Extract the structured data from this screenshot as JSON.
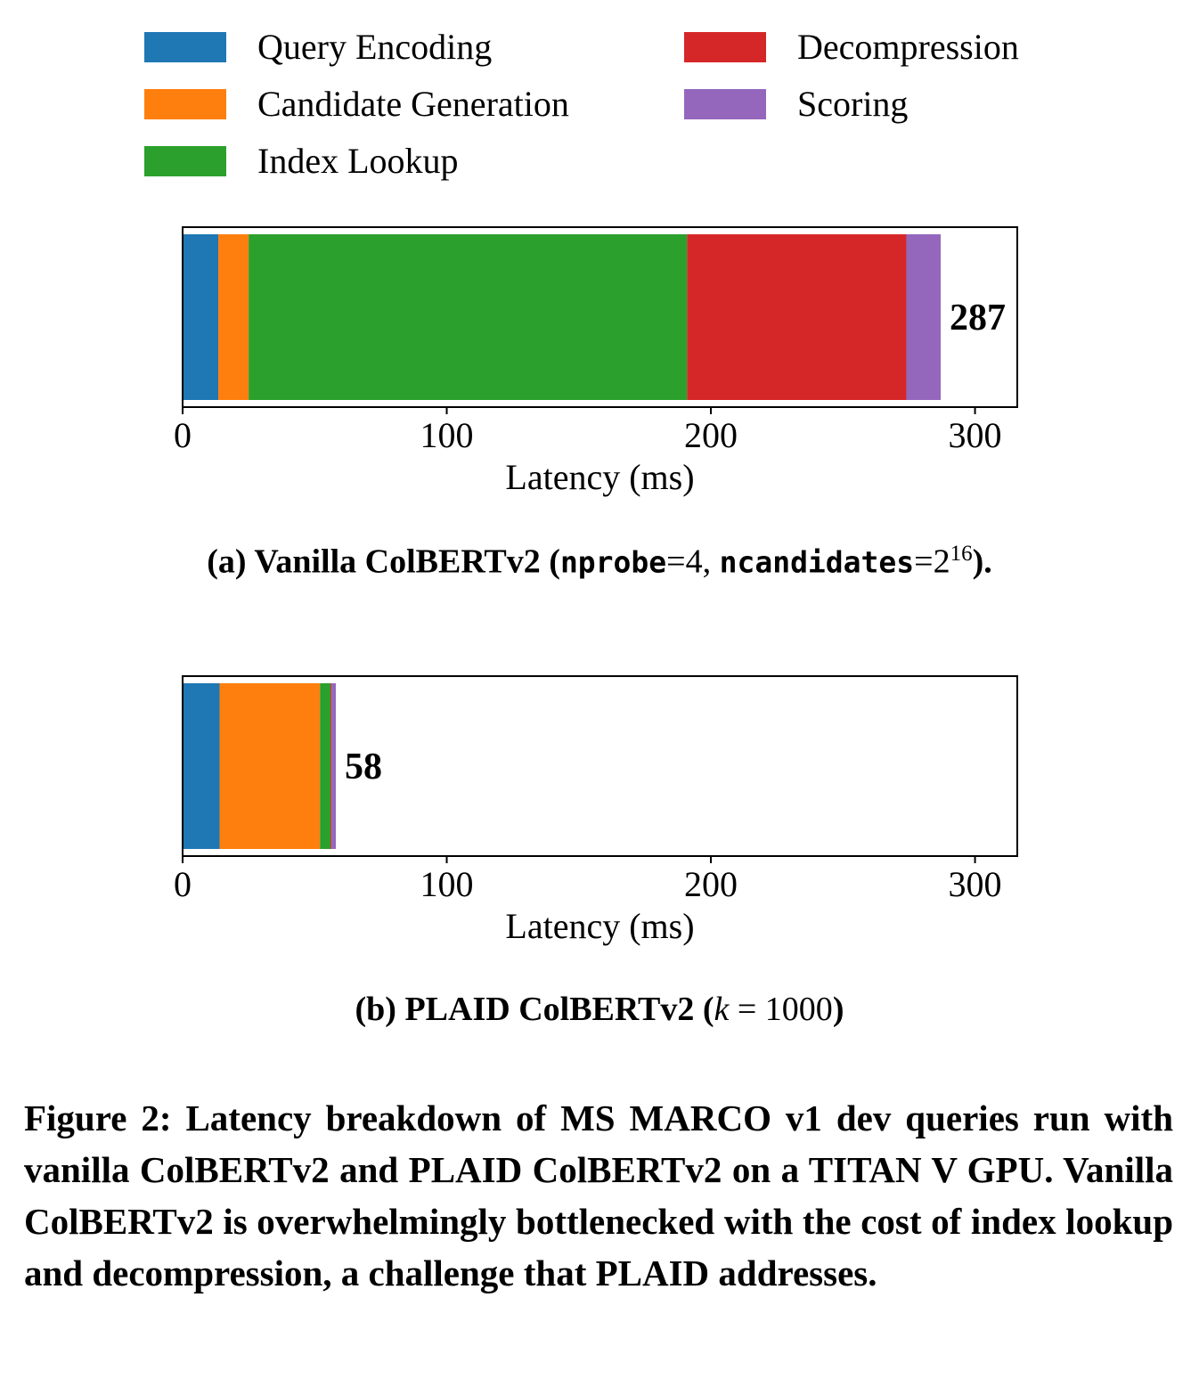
{
  "legend": [
    {
      "label": "Query Encoding",
      "color": "#1f77b4"
    },
    {
      "label": "Candidate Generation",
      "color": "#ff7f0e"
    },
    {
      "label": "Index Lookup",
      "color": "#2ca02c"
    },
    {
      "label": "Decompression",
      "color": "#d62728"
    },
    {
      "label": "Scoring",
      "color": "#9467bd"
    }
  ],
  "chart_data": [
    {
      "type": "bar",
      "orientation": "horizontal",
      "stacked": true,
      "series": [
        {
          "name": "Query Encoding",
          "values": [
            13.5
          ]
        },
        {
          "name": "Candidate Generation",
          "values": [
            11.5
          ]
        },
        {
          "name": "Index Lookup",
          "values": [
            166
          ]
        },
        {
          "name": "Decompression",
          "values": [
            83
          ]
        },
        {
          "name": "Scoring",
          "values": [
            13
          ]
        }
      ],
      "total_label": "287",
      "xlabel": "Latency (ms)",
      "xticks": [
        0,
        100,
        200,
        300
      ],
      "xlim": [
        0,
        316
      ],
      "grid": false,
      "caption": {
        "prefix": "(a) Vanilla ColBERTv2 (",
        "param1": "nprobe",
        "eq1": "=4, ",
        "param2": "ncandidates",
        "eq2": "=2",
        "exp": "16",
        "suffix": ")."
      }
    },
    {
      "type": "bar",
      "orientation": "horizontal",
      "stacked": true,
      "series": [
        {
          "name": "Query Encoding",
          "values": [
            14
          ]
        },
        {
          "name": "Candidate Generation",
          "values": [
            38
          ]
        },
        {
          "name": "Index Lookup",
          "values": [
            4
          ]
        },
        {
          "name": "Decompression",
          "values": [
            0.4
          ]
        },
        {
          "name": "Scoring",
          "values": [
            1.6
          ]
        }
      ],
      "total_label": "58",
      "xlabel": "Latency (ms)",
      "xticks": [
        0,
        100,
        200,
        300
      ],
      "xlim": [
        0,
        316
      ],
      "grid": false,
      "caption": {
        "prefix": "(b) PLAID ColBERTv2 (",
        "var": "k",
        "eq": " = 1000",
        "suffix": ")"
      }
    }
  ],
  "figure_caption": "Figure 2: Latency breakdown of MS MARCO v1 dev queries run with vanilla ColBERTv2 and PLAID ColBERTv2 on a TITAN V GPU. Vanilla ColBERTv2 is overwhelmingly bottlenecked with the cost of index lookup and decompression, a challenge that PLAID addresses."
}
